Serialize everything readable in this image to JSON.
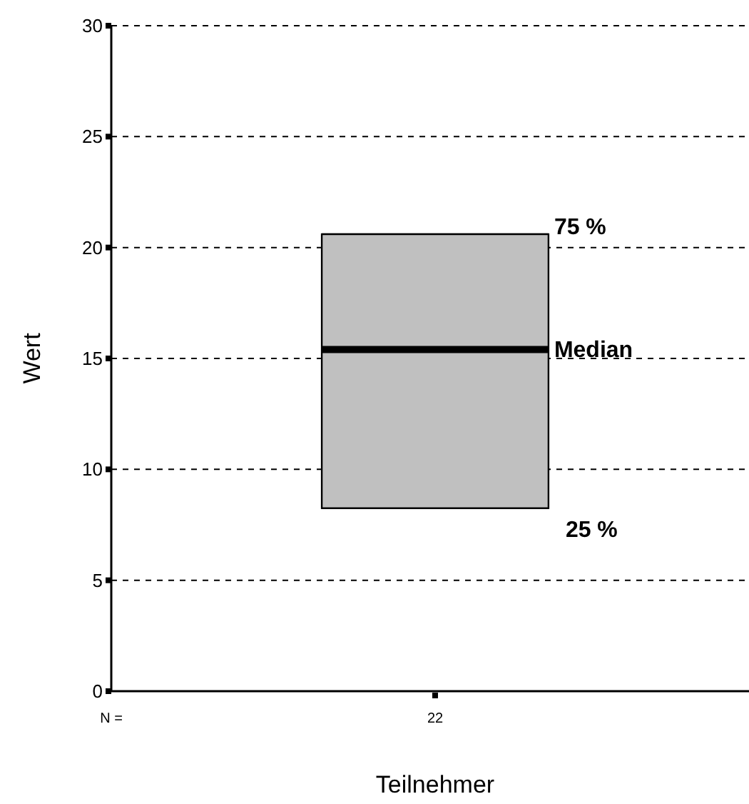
{
  "chart_data": {
    "type": "box",
    "xlabel": "Teilnehmer",
    "ylabel": "Wert",
    "categories": [
      "22"
    ],
    "boxes": [
      {
        "low": 8.25,
        "q1": 8.25,
        "median": 15.4,
        "q3": 20.6,
        "high": 20.6
      }
    ],
    "color": "#c0c0c0",
    "ylim": [
      0,
      30
    ],
    "yticks": [
      0,
      5,
      10,
      15,
      20,
      25,
      30
    ],
    "grid": "y",
    "annotations": [
      "N =",
      "75 %",
      "Median",
      "25 %"
    ]
  }
}
